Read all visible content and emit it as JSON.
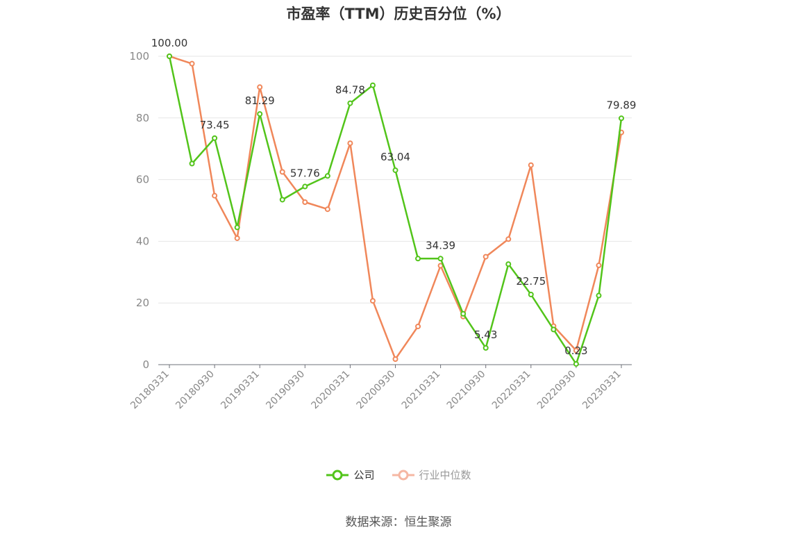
{
  "chart_data": {
    "type": "line",
    "title": "市盈率（TTM）历史百分位（%）",
    "x": [
      "20180331",
      "20180630",
      "20180930",
      "20181231",
      "20190331",
      "20190630",
      "20190930",
      "20191231",
      "20200331",
      "20200630",
      "20200930",
      "20201231",
      "20210331",
      "20210630",
      "20210930",
      "20211231",
      "20220331",
      "20220630",
      "20220930",
      "20221231",
      "20230331"
    ],
    "x_tick_labels": [
      "20180331",
      "20180930",
      "20190331",
      "20190930",
      "20200331",
      "20200930",
      "20210331",
      "20210930",
      "20220331",
      "20220930",
      "20230331"
    ],
    "ylim": [
      0,
      100
    ],
    "y_ticks": [
      0,
      20,
      40,
      60,
      80,
      100
    ],
    "grid": true,
    "legend_position": "bottom",
    "series": [
      {
        "name": "公司",
        "color": "#52c41a",
        "values": [
          100.0,
          65.2,
          73.45,
          44.5,
          81.29,
          53.5,
          57.76,
          61.2,
          84.78,
          90.6,
          63.04,
          34.39,
          34.39,
          16.5,
          5.43,
          32.6,
          22.75,
          11.4,
          0.23,
          22.4,
          79.89
        ],
        "data_labels": {
          "0": "100.00",
          "2": "73.45",
          "4": "81.29",
          "6": "57.76",
          "8": "84.78",
          "10": "63.04",
          "12": "34.39",
          "14": "5.43",
          "16": "22.75",
          "18": "0.23",
          "20": "79.89"
        }
      },
      {
        "name": "行业中位数",
        "color": "#f0875a",
        "values": [
          100.0,
          97.6,
          54.8,
          41.0,
          90.0,
          62.5,
          52.7,
          50.4,
          71.8,
          20.7,
          1.8,
          12.4,
          32.1,
          15.6,
          35.0,
          40.7,
          64.7,
          12.5,
          4.6,
          32.2,
          75.3
        ]
      }
    ]
  },
  "legend": {
    "company_label": "公司",
    "industry_label": "行业中位数",
    "company_color": "#52c41a",
    "industry_color": "#f0875a",
    "inactive_color": "#f5b7a3"
  },
  "source_text": "数据来源：恒生聚源"
}
